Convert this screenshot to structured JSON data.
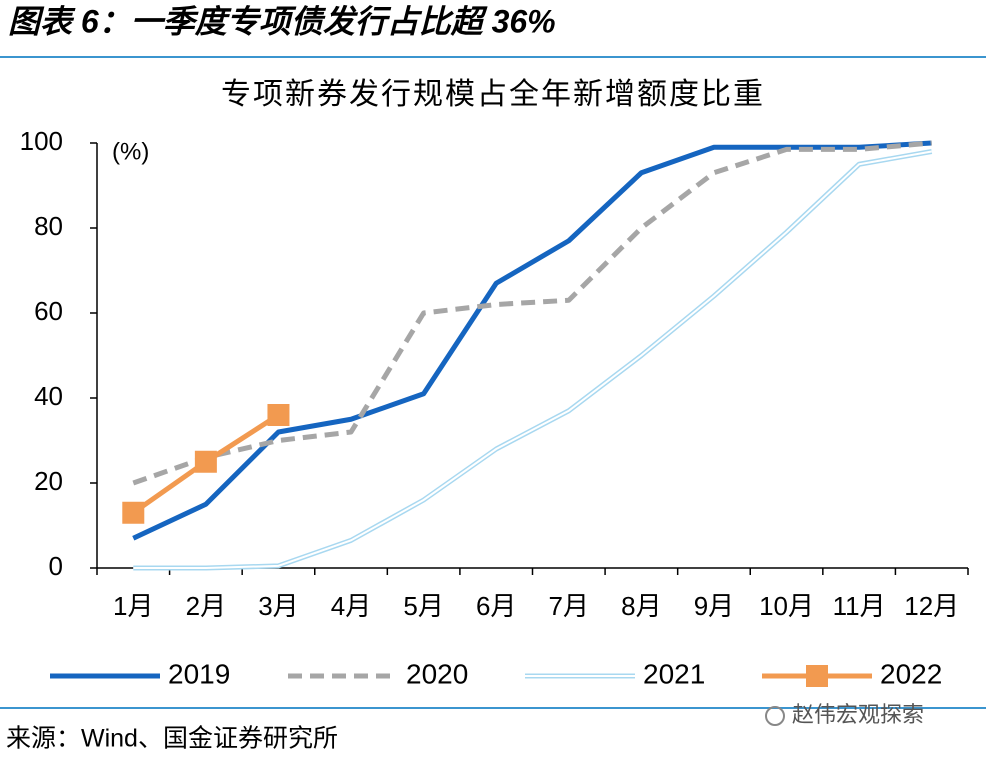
{
  "heading": "图表 6：一季度专项债发行占比超 36%",
  "source": "来源：Wind、国金证券研究所",
  "watermark": "赵伟宏观探索",
  "chart_data": {
    "type": "line",
    "title": "专项新券发行规模占全年新增额度比重",
    "ylabel": "(%)",
    "categories": [
      "1月",
      "2月",
      "3月",
      "4月",
      "5月",
      "6月",
      "7月",
      "8月",
      "9月",
      "10月",
      "11月",
      "12月"
    ],
    "ylim": [
      0,
      100
    ],
    "yticks": [
      0,
      20,
      40,
      60,
      80,
      100
    ],
    "grid": false,
    "legend": "bottom",
    "series": [
      {
        "name": "2019",
        "color": "#1565c0",
        "style": "solid",
        "values": [
          7,
          15,
          32,
          35,
          41,
          67,
          77,
          93,
          99,
          99,
          99,
          100
        ]
      },
      {
        "name": "2020",
        "color": "#a6a6a6",
        "style": "dashed",
        "values": [
          20,
          26,
          30,
          32,
          60,
          62,
          63,
          80,
          93,
          98.5,
          98.5,
          100
        ]
      },
      {
        "name": "2021",
        "color": "#a8d8f0",
        "style": "double",
        "values": [
          0,
          0,
          0.5,
          6.5,
          16,
          28,
          37,
          50,
          64,
          79,
          95,
          98
        ]
      },
      {
        "name": "2022",
        "color": "#f29a50",
        "style": "solid",
        "marker": "square",
        "values": [
          13,
          25,
          36,
          null,
          null,
          null,
          null,
          null,
          null,
          null,
          null,
          null
        ]
      }
    ]
  }
}
